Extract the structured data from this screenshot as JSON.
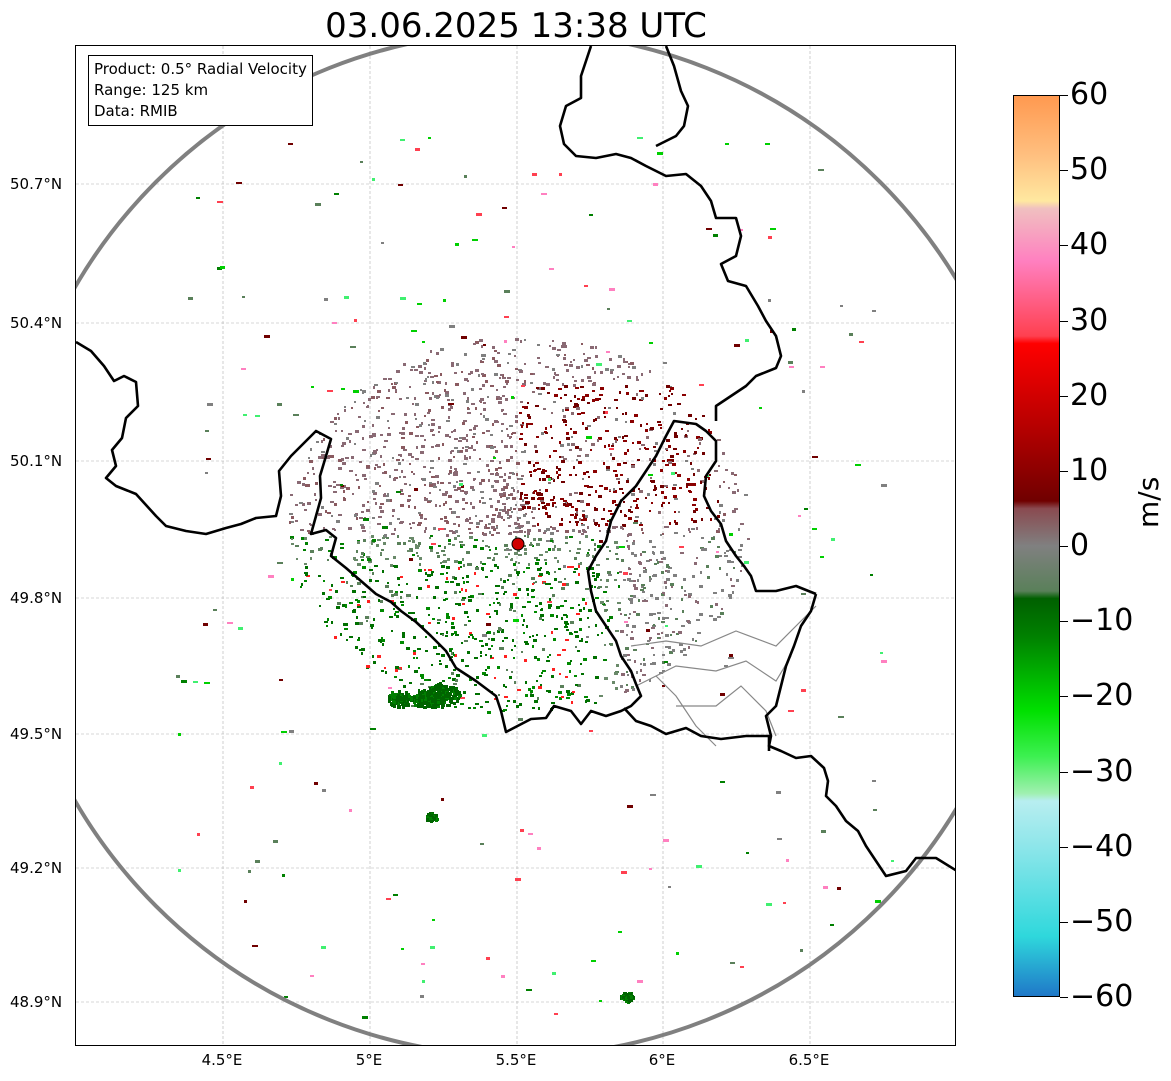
{
  "title": "03.06.2025 13:38 UTC",
  "info": {
    "product": "Product: 0.5° Radial Velocity",
    "range": "Range: 125 km",
    "data": "Data: RMIB"
  },
  "axes": {
    "lat_labels": [
      "50.7°N",
      "50.4°N",
      "50.1°N",
      "49.8°N",
      "49.5°N",
      "49.2°N",
      "48.9°N"
    ],
    "lon_labels": [
      "4.5°E",
      "5°E",
      "5.5°E",
      "6°E",
      "6.5°E"
    ]
  },
  "radar_site": {
    "lon": 5.5,
    "lat": 49.915,
    "marker_color": "#d00000"
  },
  "colorbar": {
    "unit": "m/s",
    "ticks": [
      "60",
      "50",
      "40",
      "30",
      "20",
      "10",
      "0",
      "−10",
      "−20",
      "−30",
      "−40",
      "−50",
      "−60"
    ],
    "stops": [
      {
        "v": -60,
        "c": "#1f78c8"
      },
      {
        "v": -52,
        "c": "#2fd8dc"
      },
      {
        "v": -40,
        "c": "#8ee6ea"
      },
      {
        "v": -34,
        "c": "#b8eef0"
      },
      {
        "v": -33,
        "c": "#a0f0b0"
      },
      {
        "v": -28,
        "c": "#3cf050"
      },
      {
        "v": -22,
        "c": "#00e000"
      },
      {
        "v": -12,
        "c": "#008000"
      },
      {
        "v": -7,
        "c": "#006000"
      },
      {
        "v": -6,
        "c": "#5a805a"
      },
      {
        "v": 0,
        "c": "#808080"
      },
      {
        "v": 5,
        "c": "#8a4a50"
      },
      {
        "v": 6,
        "c": "#700000"
      },
      {
        "v": 15,
        "c": "#b00000"
      },
      {
        "v": 27,
        "c": "#ff0000"
      },
      {
        "v": 28,
        "c": "#ff4050"
      },
      {
        "v": 38,
        "c": "#ff80c0"
      },
      {
        "v": 45,
        "c": "#f0c0c0"
      },
      {
        "v": 46,
        "c": "#ffe8a0"
      },
      {
        "v": 52,
        "c": "#ffc080"
      },
      {
        "v": 60,
        "c": "#ff9950"
      }
    ]
  }
}
